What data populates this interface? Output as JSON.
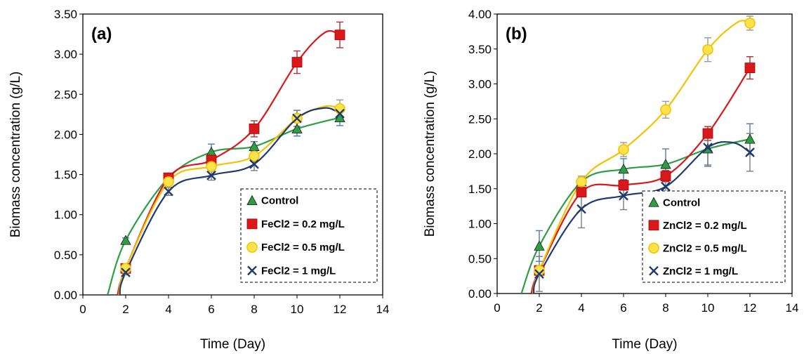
{
  "chart_data": [
    {
      "type": "line",
      "panel_label": "(a)",
      "xlabel": "Time (Day)",
      "ylabel": "Biomass concentration (g/L)",
      "xlim": [
        0,
        14
      ],
      "ylim": [
        0,
        3.5
      ],
      "x_ticks": [
        "0",
        "2",
        "4",
        "6",
        "8",
        "10",
        "12",
        "14"
      ],
      "y_ticks": [
        "0.00",
        "0.50",
        "1.00",
        "1.50",
        "2.00",
        "2.50",
        "3.00",
        "3.50"
      ],
      "x": [
        2,
        4,
        6,
        8,
        10,
        12
      ],
      "grid": false,
      "legend_position": "bottom-right",
      "series": [
        {
          "name": "Control",
          "marker": "triangle",
          "color": "#2e9e44",
          "values": [
            0.68,
            1.46,
            1.78,
            1.85,
            2.07,
            2.21
          ],
          "errors": [
            0.03,
            0.05,
            0.1,
            0.06,
            0.09,
            0.1
          ],
          "curve": [
            [
              1.15,
              0.0
            ],
            [
              2,
              0.68
            ],
            [
              4,
              1.46
            ],
            [
              6,
              1.78
            ],
            [
              8,
              1.85
            ],
            [
              10,
              2.07
            ],
            [
              12,
              2.21
            ]
          ]
        },
        {
          "name": "FeCl2 = 0.2 mg/L",
          "marker": "square",
          "color": "#d7191c",
          "values": [
            0.33,
            1.46,
            1.68,
            2.07,
            2.9,
            3.24
          ],
          "errors": [
            0.03,
            0.05,
            0.08,
            0.1,
            0.14,
            0.16
          ],
          "curve": [
            [
              1.62,
              0.0
            ],
            [
              2,
              0.33
            ],
            [
              4,
              1.46
            ],
            [
              6,
              1.68
            ],
            [
              8,
              2.07
            ],
            [
              10,
              2.9
            ],
            [
              11.3,
              3.27
            ],
            [
              12,
              3.24
            ]
          ]
        },
        {
          "name": "FeCl2 = 0.5 mg/L",
          "marker": "circle",
          "color": "#f5c200",
          "values": [
            0.33,
            1.41,
            1.6,
            1.73,
            2.2,
            2.32
          ],
          "errors": [
            0.03,
            0.05,
            0.06,
            0.07,
            0.1,
            0.11
          ],
          "curve": [
            [
              1.68,
              0.0
            ],
            [
              2,
              0.33
            ],
            [
              4,
              1.41
            ],
            [
              6,
              1.6
            ],
            [
              8,
              1.73
            ],
            [
              10,
              2.2
            ],
            [
              11.3,
              2.35
            ],
            [
              12,
              2.32
            ]
          ]
        },
        {
          "name": "FeCl2 = 1 mg/L",
          "marker": "x",
          "color": "#1f3a6e",
          "values": [
            0.28,
            1.29,
            1.49,
            1.63,
            2.2,
            2.26
          ],
          "errors": [
            0.03,
            0.05,
            0.06,
            0.08,
            0.1,
            0.08
          ],
          "curve": [
            [
              1.72,
              0.0
            ],
            [
              2,
              0.28
            ],
            [
              4,
              1.29
            ],
            [
              6,
              1.49
            ],
            [
              8,
              1.63
            ],
            [
              10,
              2.2
            ],
            [
              11.3,
              2.33
            ],
            [
              12,
              2.26
            ]
          ]
        }
      ]
    },
    {
      "type": "line",
      "panel_label": "(b)",
      "xlabel": "Time (Day)",
      "ylabel": "Biomass concentration (g/L)",
      "xlim": [
        0,
        14
      ],
      "ylim": [
        0,
        4.0
      ],
      "x_ticks": [
        "0",
        "2",
        "4",
        "6",
        "8",
        "10",
        "12",
        "14"
      ],
      "y_ticks": [
        "0.00",
        "0.50",
        "1.00",
        "1.50",
        "2.00",
        "2.50",
        "3.00",
        "3.50",
        "4.00"
      ],
      "x": [
        2,
        4,
        6,
        8,
        10,
        12
      ],
      "grid": false,
      "legend_position": "bottom-right",
      "series": [
        {
          "name": "Control",
          "marker": "triangle",
          "color": "#2e9e44",
          "values": [
            0.68,
            1.6,
            1.78,
            1.85,
            2.07,
            2.21
          ],
          "errors": [
            0.22,
            0.06,
            0.15,
            0.22,
            0.25,
            0.22
          ],
          "curve": [
            [
              1.15,
              0.0
            ],
            [
              2,
              0.68
            ],
            [
              4,
              1.6
            ],
            [
              6,
              1.78
            ],
            [
              8,
              1.85
            ],
            [
              10,
              2.07
            ],
            [
              12,
              2.21
            ]
          ]
        },
        {
          "name": "ZnCl2 = 0.2 mg/L",
          "marker": "square",
          "color": "#d7191c",
          "values": [
            0.33,
            1.45,
            1.55,
            1.68,
            2.29,
            3.23
          ],
          "errors": [
            0.04,
            0.06,
            0.07,
            0.08,
            0.1,
            0.16
          ],
          "curve": [
            [
              1.62,
              0.0
            ],
            [
              2,
              0.33
            ],
            [
              4,
              1.45
            ],
            [
              6,
              1.55
            ],
            [
              8,
              1.68
            ],
            [
              10,
              2.29
            ],
            [
              12,
              3.23
            ]
          ]
        },
        {
          "name": "ZnCl2 = 0.5 mg/L",
          "marker": "circle",
          "color": "#f5c200",
          "values": [
            0.33,
            1.6,
            2.06,
            2.63,
            3.49,
            3.87
          ],
          "errors": [
            0.04,
            0.08,
            0.1,
            0.12,
            0.17,
            0.1
          ],
          "curve": [
            [
              1.7,
              0.0
            ],
            [
              2,
              0.33
            ],
            [
              4,
              1.6
            ],
            [
              6,
              2.06
            ],
            [
              8,
              2.63
            ],
            [
              10,
              3.49
            ],
            [
              11.4,
              3.88
            ],
            [
              12,
              3.87
            ]
          ]
        },
        {
          "name": "ZnCl2 = 1 mg/L",
          "marker": "x",
          "color": "#1f3a6e",
          "values": [
            0.28,
            1.21,
            1.4,
            1.53,
            2.09,
            2.02
          ],
          "errors": [
            0.25,
            0.27,
            0.2,
            0.26,
            0.25,
            0.27
          ],
          "curve": [
            [
              1.73,
              0.0
            ],
            [
              2,
              0.28
            ],
            [
              4,
              1.21
            ],
            [
              6,
              1.4
            ],
            [
              8,
              1.53
            ],
            [
              10,
              2.09
            ],
            [
              11.2,
              2.16
            ],
            [
              12,
              2.02
            ]
          ]
        }
      ]
    }
  ]
}
